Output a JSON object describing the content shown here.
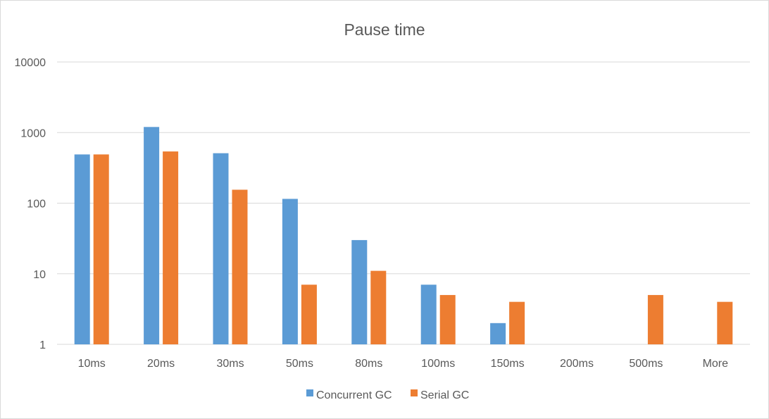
{
  "chart_data": {
    "type": "bar",
    "title": "Pause time",
    "xlabel": "",
    "ylabel": "",
    "yscale": "log",
    "ylim": [
      1,
      10000
    ],
    "y_ticks": [
      "1",
      "10",
      "100",
      "1000",
      "10000"
    ],
    "y_tick_values": [
      1,
      10,
      100,
      1000,
      10000
    ],
    "categories": [
      "10ms",
      "20ms",
      "30ms",
      "50ms",
      "80ms",
      "100ms",
      "150ms",
      "200ms",
      "500ms",
      "More"
    ],
    "series": [
      {
        "name": "Concurrent GC",
        "color": "#5b9bd5",
        "values": [
          490,
          1200,
          510,
          115,
          30,
          7,
          2,
          0,
          0,
          0
        ]
      },
      {
        "name": "Serial GC",
        "color": "#ed7d31",
        "values": [
          490,
          540,
          155,
          7,
          11,
          5,
          4,
          0,
          5,
          4
        ]
      }
    ],
    "grid": true,
    "legend_position": "bottom"
  }
}
